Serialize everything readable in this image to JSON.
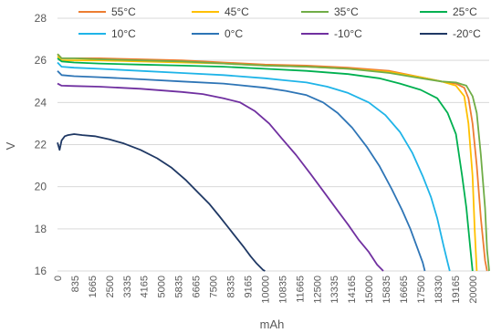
{
  "chart_data": {
    "type": "line",
    "title": "",
    "xlabel": "mAh",
    "ylabel": "V",
    "ylim": [
      16,
      28
    ],
    "xlim": [
      0,
      20800
    ],
    "yticks": [
      16,
      18,
      20,
      22,
      24,
      26,
      28
    ],
    "xticks": [
      "0",
      "835",
      "1665",
      "2500",
      "3335",
      "4165",
      "5000",
      "5835",
      "6665",
      "7500",
      "8335",
      "9165",
      "10000",
      "10835",
      "11665",
      "12500",
      "13335",
      "14165",
      "15000",
      "15835",
      "16665",
      "17500",
      "18330",
      "19165",
      "20000"
    ],
    "grid": true,
    "legend_position": "top",
    "series": [
      {
        "name": "55°C",
        "color": "#ED7D31",
        "x": [
          0,
          200,
          800,
          2000,
          4000,
          6000,
          8000,
          10000,
          12000,
          14000,
          16000,
          17500,
          18500,
          19200,
          19600,
          19800,
          20000,
          20200,
          20400,
          20600,
          20700
        ],
        "y": [
          26.3,
          26.1,
          26.1,
          26.1,
          26.05,
          26.0,
          25.9,
          25.8,
          25.75,
          25.65,
          25.5,
          25.2,
          25.0,
          24.9,
          24.7,
          24.2,
          23.0,
          21.0,
          18.5,
          16.5,
          16.0
        ]
      },
      {
        "name": "45°C",
        "color": "#FFC000",
        "x": [
          0,
          200,
          800,
          2000,
          4000,
          6000,
          8000,
          10000,
          12000,
          14000,
          16000,
          17500,
          18500,
          19200,
          19600,
          19800,
          20000,
          20100,
          20200
        ],
        "y": [
          26.2,
          26.0,
          26.0,
          26.0,
          25.95,
          25.9,
          25.85,
          25.75,
          25.7,
          25.6,
          25.45,
          25.2,
          25.0,
          24.8,
          24.3,
          23.0,
          20.5,
          18.0,
          16.0
        ]
      },
      {
        "name": "35°C",
        "color": "#70AD47",
        "x": [
          0,
          200,
          800,
          2000,
          4000,
          6000,
          8000,
          10000,
          12000,
          14000,
          16000,
          17500,
          18500,
          19200,
          19700,
          20000,
          20200,
          20400,
          20600,
          20700,
          20800
        ],
        "y": [
          26.3,
          26.1,
          26.1,
          26.05,
          26.0,
          25.95,
          25.85,
          25.75,
          25.7,
          25.6,
          25.4,
          25.15,
          25.0,
          24.95,
          24.8,
          24.3,
          23.5,
          21.5,
          19.0,
          17.0,
          16.0
        ]
      },
      {
        "name": "25°C",
        "color": "#00B050",
        "x": [
          0,
          200,
          800,
          2000,
          4000,
          6000,
          8000,
          10000,
          12000,
          14000,
          15500,
          16500,
          17500,
          18300,
          18800,
          19200,
          19500,
          19700,
          19900,
          20000
        ],
        "y": [
          26.1,
          25.95,
          25.9,
          25.85,
          25.8,
          25.75,
          25.7,
          25.6,
          25.5,
          25.35,
          25.15,
          24.9,
          24.6,
          24.2,
          23.5,
          22.5,
          20.5,
          19.0,
          17.0,
          16.0
        ]
      },
      {
        "name": "10°C",
        "color": "#1FB4E8",
        "x": [
          0,
          200,
          800,
          2000,
          4000,
          6000,
          8000,
          10000,
          11000,
          12000,
          13000,
          14000,
          15000,
          15800,
          16500,
          17100,
          17600,
          18000,
          18300,
          18600,
          18800,
          18900
        ],
        "y": [
          25.9,
          25.7,
          25.65,
          25.6,
          25.5,
          25.4,
          25.3,
          25.15,
          25.05,
          24.95,
          24.75,
          24.45,
          24.0,
          23.4,
          22.6,
          21.6,
          20.5,
          19.5,
          18.5,
          17.2,
          16.4,
          16.0
        ]
      },
      {
        "name": "0°C",
        "color": "#2E75B6",
        "x": [
          0,
          200,
          800,
          2000,
          4000,
          6000,
          8000,
          10000,
          11000,
          12000,
          12800,
          13500,
          14200,
          14900,
          15500,
          16100,
          16600,
          17000,
          17300,
          17600,
          17700
        ],
        "y": [
          25.5,
          25.3,
          25.25,
          25.2,
          25.1,
          25.0,
          24.9,
          24.7,
          24.55,
          24.35,
          24.0,
          23.5,
          22.8,
          21.9,
          21.0,
          19.9,
          18.9,
          18.0,
          17.2,
          16.4,
          16.0
        ]
      },
      {
        "name": "-10°C",
        "color": "#7030A0",
        "x": [
          0,
          200,
          800,
          2000,
          4000,
          6000,
          7000,
          8000,
          8800,
          9500,
          10200,
          10800,
          11500,
          12200,
          12800,
          13400,
          14000,
          14500,
          15000,
          15400,
          15700
        ],
        "y": [
          24.9,
          24.8,
          24.78,
          24.75,
          24.65,
          24.5,
          24.4,
          24.2,
          24.0,
          23.6,
          23.0,
          22.3,
          21.5,
          20.6,
          19.8,
          19.0,
          18.2,
          17.5,
          16.9,
          16.3,
          16.0
        ]
      },
      {
        "name": "-20°C",
        "color": "#1F3864",
        "x": [
          0,
          100,
          200,
          350,
          500,
          800,
          1200,
          1800,
          2500,
          3200,
          4000,
          4800,
          5500,
          6200,
          6800,
          7300,
          7800,
          8200,
          8600,
          9000,
          9300,
          9600,
          9900,
          10000
        ],
        "y": [
          22.1,
          21.75,
          22.2,
          22.4,
          22.45,
          22.5,
          22.45,
          22.4,
          22.25,
          22.05,
          21.75,
          21.35,
          20.9,
          20.3,
          19.7,
          19.2,
          18.6,
          18.1,
          17.6,
          17.1,
          16.7,
          16.35,
          16.05,
          16.0
        ]
      }
    ]
  }
}
